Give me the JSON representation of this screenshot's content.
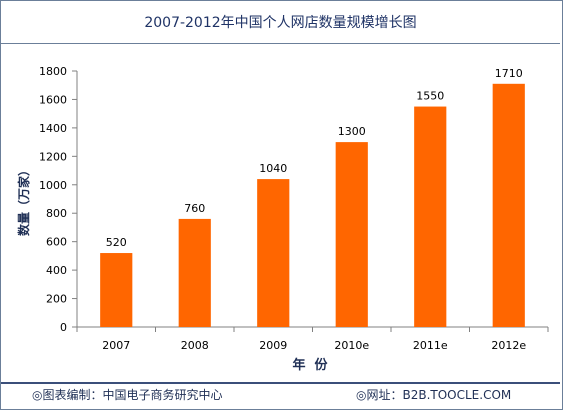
{
  "title": "2007-2012年中国个人网店数量规模增长图",
  "footer": {
    "left": "◎图表编制：中国电子商务研究中心",
    "right": "◎网址：B2B.TOOCLE.COM"
  },
  "chart_data": {
    "type": "bar",
    "title": "2007-2012年中国个人网店数量规模增长图",
    "categories": [
      "2007",
      "2008",
      "2009",
      "2010e",
      "2011e",
      "2012e"
    ],
    "values": [
      520,
      760,
      1040,
      1300,
      1550,
      1710
    ],
    "data_labels": [
      "520",
      "760",
      "1040",
      "1300",
      "1550",
      "1710"
    ],
    "xlabel": "年  份",
    "ylabel": "数量（万家）",
    "ylim": [
      0,
      1800
    ],
    "yticks": [
      0,
      200,
      400,
      600,
      800,
      1000,
      1200,
      1400,
      1600,
      1800
    ],
    "ytick_labels": [
      "0",
      "200",
      "400",
      "600",
      "800",
      "1000",
      "1200",
      "1400",
      "1600",
      "1800"
    ],
    "grid": false,
    "bar_color": "#ff6600",
    "axis_color": "#808080"
  }
}
